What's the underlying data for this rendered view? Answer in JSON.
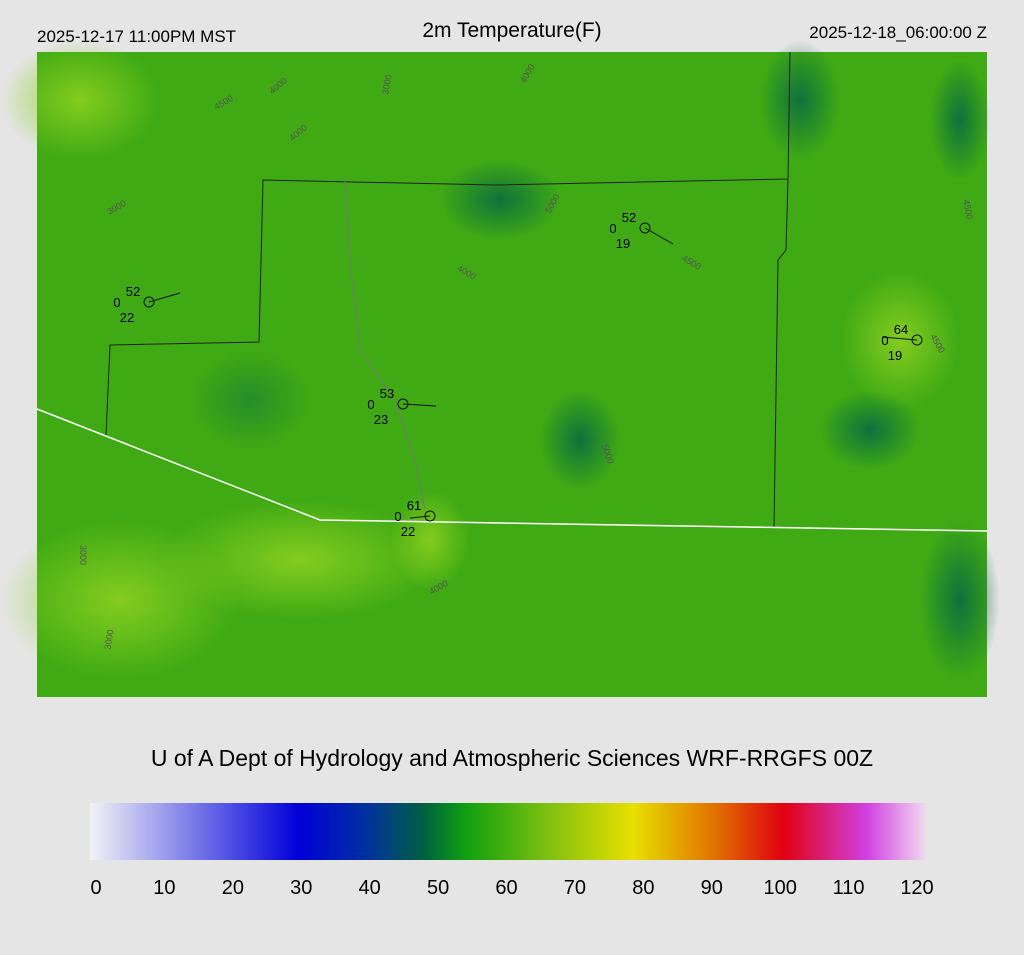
{
  "header": {
    "left": "2025-12-17 11:00PM MST",
    "title": "2m Temperature(F)",
    "right": "2025-12-18_06:00:00 Z"
  },
  "stations": [
    {
      "temp": 52,
      "calm": 0,
      "dew": 22
    },
    {
      "temp": 52,
      "calm": 0,
      "dew": 19
    },
    {
      "temp": 64,
      "calm": 0,
      "dew": 19
    },
    {
      "temp": 53,
      "calm": 0,
      "dew": 23
    },
    {
      "temp": 61,
      "calm": 0,
      "dew": 22
    }
  ],
  "contour_labels": [
    "3000",
    "4000",
    "4500",
    "4000",
    "3000",
    "4000",
    "4500",
    "5000",
    "4000",
    "4500",
    "5000",
    "3000",
    "3000",
    "4000",
    "4500"
  ],
  "credit": "U of A Dept of Hydrology and Atmospheric Sciences WRF-RRGFS 00Z",
  "colorbar": {
    "ticks": [
      0,
      10,
      20,
      30,
      40,
      50,
      60,
      70,
      80,
      90,
      100,
      110,
      120
    ]
  }
}
